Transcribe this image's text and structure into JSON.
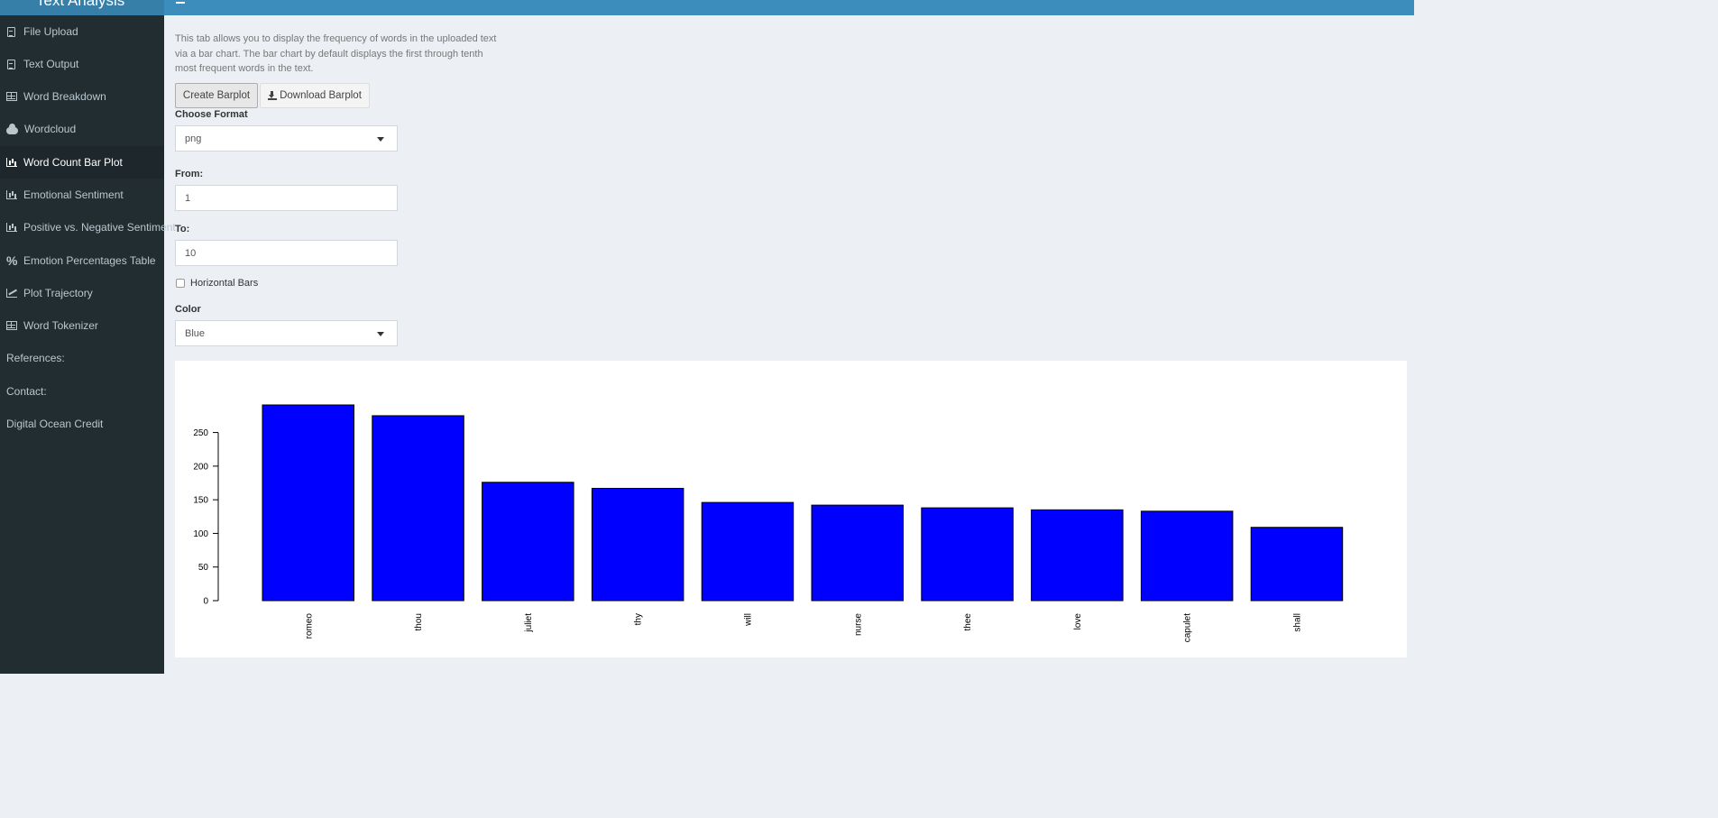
{
  "header": {
    "brand": "Text Analysis"
  },
  "sidebar": {
    "items": [
      {
        "label": "File Upload",
        "icon": "file-icon",
        "active": false
      },
      {
        "label": "Text Output",
        "icon": "file-icon",
        "active": false
      },
      {
        "label": "Word Breakdown",
        "icon": "table-icon",
        "active": false
      },
      {
        "label": "Wordcloud",
        "icon": "cloud-icon",
        "active": false
      },
      {
        "label": "Word Count Bar Plot",
        "icon": "bar-chart-icon",
        "active": true
      },
      {
        "label": "Emotional Sentiment",
        "icon": "bar-chart-icon",
        "active": false
      },
      {
        "label": "Positive vs. Negative Sentiment",
        "icon": "bar-chart-icon",
        "active": false
      },
      {
        "label": "Emotion Percentages Table",
        "icon": "percent-icon",
        "active": false
      },
      {
        "label": "Plot Trajectory",
        "icon": "line-chart-icon",
        "active": false
      },
      {
        "label": "Word Tokenizer",
        "icon": "table-icon",
        "active": false
      },
      {
        "label": "References:",
        "icon": "",
        "active": false
      },
      {
        "label": "Contact:",
        "icon": "",
        "active": false
      },
      {
        "label": "Digital Ocean Credit",
        "icon": "",
        "active": false
      }
    ]
  },
  "main": {
    "description": "This tab allows you to display the frequency of words in the uploaded text via a bar chart. The bar chart by default displays the first through tenth most frequent words in the text.",
    "create_button": "Create Barplot",
    "download_button": "Download Barplot",
    "format": {
      "label": "Choose Format",
      "value": "png"
    },
    "from": {
      "label": "From:",
      "value": "1"
    },
    "to": {
      "label": "To:",
      "value": "10"
    },
    "horizontal": {
      "label": "Horizontal Bars",
      "checked": false
    },
    "color": {
      "label": "Color",
      "value": "Blue"
    }
  },
  "chart_data": {
    "type": "bar",
    "categories": [
      "romeo",
      "thou",
      "juliet",
      "thy",
      "will",
      "nurse",
      "thee",
      "love",
      "capulet",
      "shall"
    ],
    "values": [
      291,
      275,
      176,
      167,
      146,
      142,
      138,
      135,
      133,
      109
    ],
    "yticks": [
      0,
      50,
      100,
      150,
      200,
      250
    ],
    "ylim": [
      0,
      291
    ],
    "bar_color": "#0000ff",
    "title": "",
    "xlabel": "",
    "ylabel": ""
  }
}
